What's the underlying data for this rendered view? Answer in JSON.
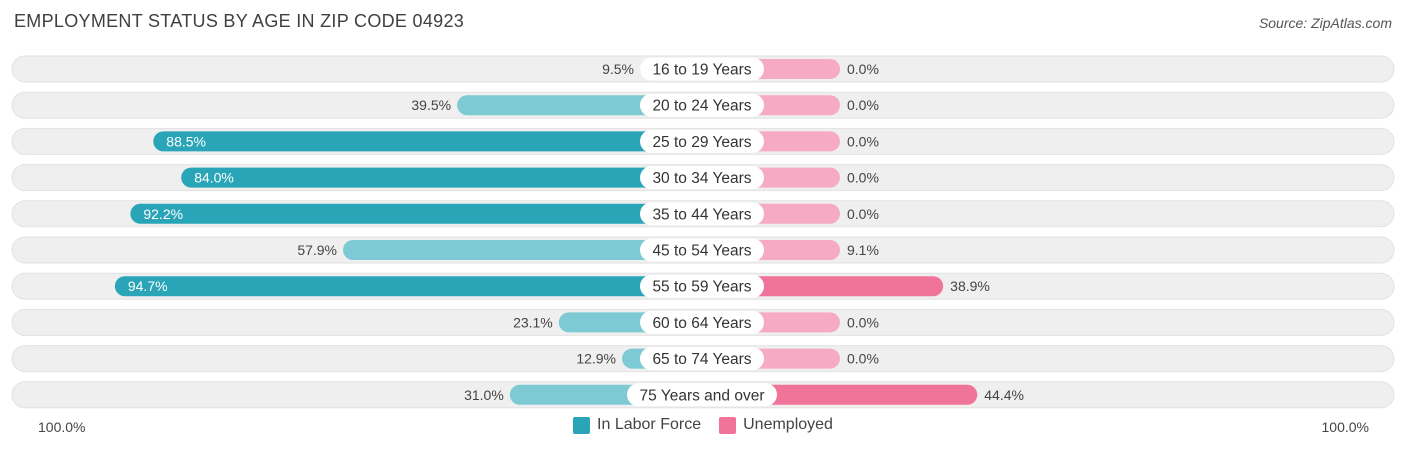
{
  "title": "EMPLOYMENT STATUS BY AGE IN ZIP CODE 04923",
  "source": "Source: ZipAtlas.com",
  "axis": {
    "left_label": "100.0%",
    "right_label": "100.0%"
  },
  "legend": [
    {
      "label": "In Labor Force",
      "color": "#2aa5b8"
    },
    {
      "label": "Unemployed",
      "color": "#f07399"
    }
  ],
  "colors": {
    "labor_strong": "#2aa5b8",
    "labor_light": "#7dcad5",
    "unemp_strong": "#f07399",
    "unemp_light": "#f6aac3",
    "row_bg": "#efefef"
  },
  "chart_data": {
    "type": "bar",
    "orientation": "horizontal-diverging",
    "title": "EMPLOYMENT STATUS BY AGE IN ZIP CODE 04923",
    "xlim": [
      -100,
      100
    ],
    "categories": [
      "16 to 19 Years",
      "20 to 24 Years",
      "25 to 29 Years",
      "30 to 34 Years",
      "35 to 44 Years",
      "45 to 54 Years",
      "55 to 59 Years",
      "60 to 64 Years",
      "65 to 74 Years",
      "75 Years and over"
    ],
    "series": [
      {
        "name": "In Labor Force",
        "values": [
          9.5,
          39.5,
          88.5,
          84.0,
          92.2,
          57.9,
          94.7,
          23.1,
          12.9,
          31.0
        ],
        "labels": [
          "9.5%",
          "39.5%",
          "88.5%",
          "84.0%",
          "92.2%",
          "57.9%",
          "94.7%",
          "23.1%",
          "12.9%",
          "31.0%"
        ]
      },
      {
        "name": "Unemployed",
        "values": [
          0.0,
          0.0,
          0.0,
          0.0,
          0.0,
          9.1,
          38.9,
          0.0,
          0.0,
          44.4
        ],
        "labels": [
          "0.0%",
          "0.0%",
          "0.0%",
          "0.0%",
          "0.0%",
          "9.1%",
          "38.9%",
          "0.0%",
          "0.0%",
          "44.4%"
        ]
      }
    ]
  }
}
